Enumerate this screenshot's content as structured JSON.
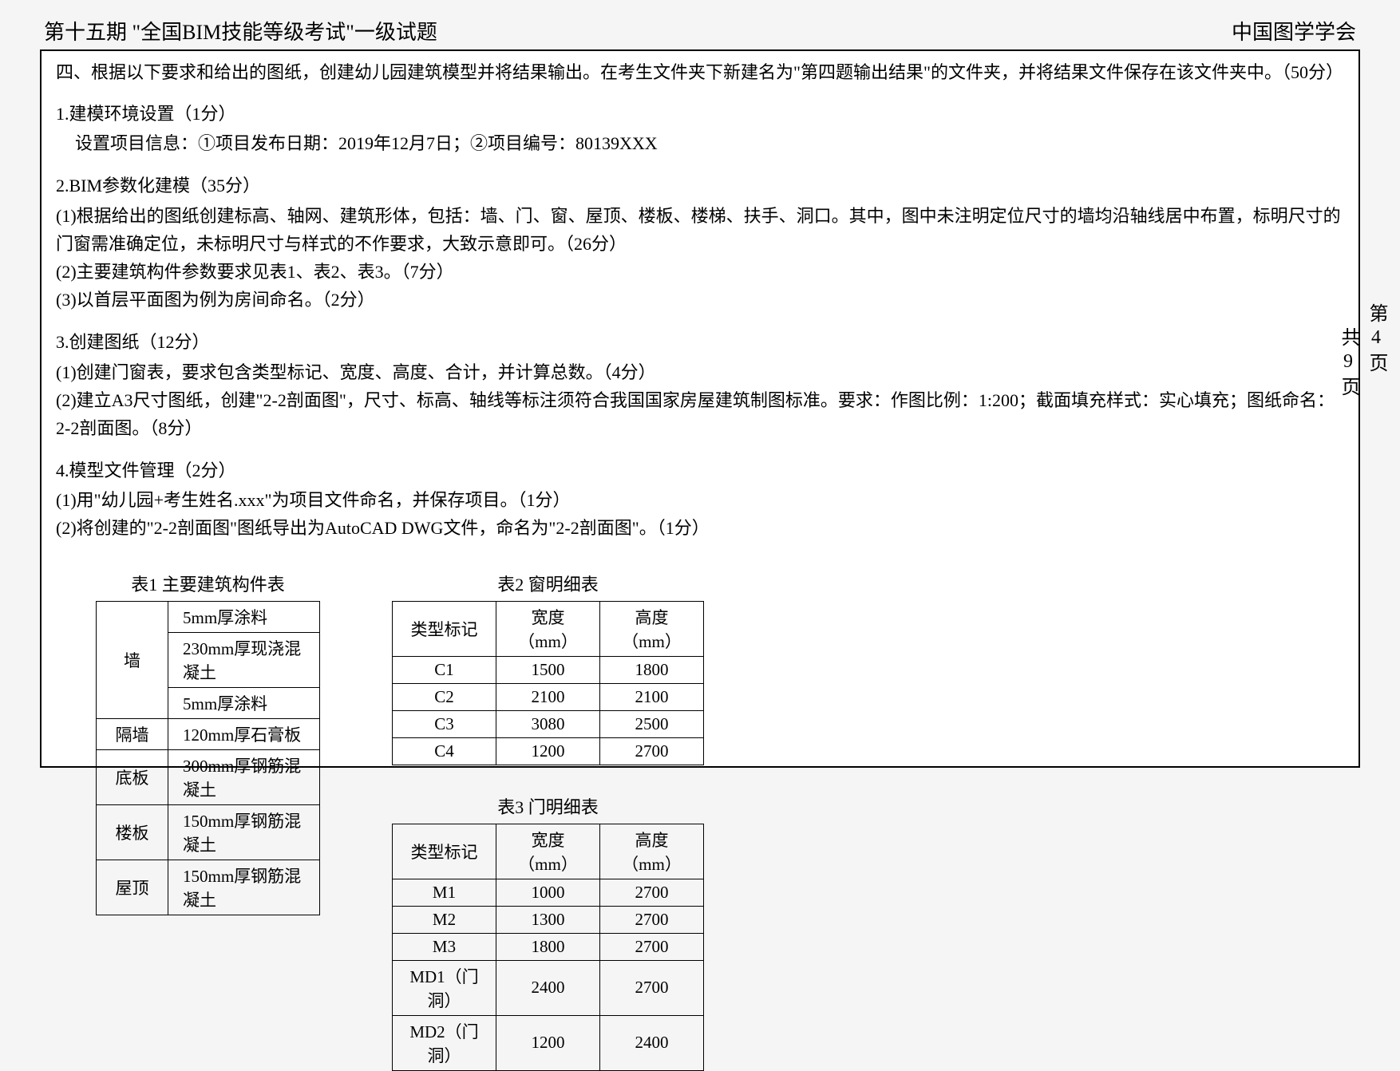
{
  "header": {
    "left": "第十五期 \"全国BIM技能等级考试\"一级试题",
    "right": "中国图学学会"
  },
  "intro": "四、根据以下要求和给出的图纸，创建幼儿园建筑模型并将结果输出。在考生文件夹下新建名为\"第四题输出结果\"的文件夹，并将结果文件保存在该文件夹中。（50分）",
  "s1": {
    "title": "1.建模环境设置（1分）",
    "line1": "设置项目信息：①项目发布日期：2019年12月7日；②项目编号：80139XXX"
  },
  "s2": {
    "title": "2.BIM参数化建模（35分）",
    "p1": "(1)根据给出的图纸创建标高、轴网、建筑形体，包括：墙、门、窗、屋顶、楼板、楼梯、扶手、洞口。其中，图中未注明定位尺寸的墙均沿轴线居中布置，标明尺寸的门窗需准确定位，未标明尺寸与样式的不作要求，大致示意即可。（26分）",
    "p2": "(2)主要建筑构件参数要求见表1、表2、表3。（7分）",
    "p3": "(3)以首层平面图为例为房间命名。（2分）"
  },
  "s3": {
    "title": "3.创建图纸（12分）",
    "p1": "(1)创建门窗表，要求包含类型标记、宽度、高度、合计，并计算总数。（4分）",
    "p2": "(2)建立A3尺寸图纸，创建\"2-2剖面图\"，尺寸、标高、轴线等标注须符合我国国家房屋建筑制图标准。要求：作图比例：1:200；截面填充样式：实心填充；图纸命名：2-2剖面图。（8分）"
  },
  "s4": {
    "title": "4.模型文件管理（2分）",
    "p1": "(1)用\"幼儿园+考生姓名.xxx\"为项目文件命名，并保存项目。（1分）",
    "p2": "(2)将创建的\"2-2剖面图\"图纸导出为AutoCAD DWG文件，命名为\"2-2剖面图\"。（1分）"
  },
  "table1": {
    "caption": "表1  主要建筑构件表",
    "rows": [
      {
        "c1": "墙",
        "c2a": "5mm厚涂料",
        "c2b": "230mm厚现浇混凝土",
        "c2c": "5mm厚涂料",
        "rowspan": 3
      },
      {
        "c1": "隔墙",
        "c2": "120mm厚石膏板"
      },
      {
        "c1": "底板",
        "c2": "300mm厚钢筋混凝土"
      },
      {
        "c1": "楼板",
        "c2": "150mm厚钢筋混凝土"
      },
      {
        "c1": "屋顶",
        "c2": "150mm厚钢筋混凝土"
      }
    ]
  },
  "table2": {
    "caption": "表2  窗明细表",
    "h1": "类型标记",
    "h2": "宽度（mm）",
    "h3": "高度（mm）",
    "rows": [
      {
        "c1": "C1",
        "c2": "1500",
        "c3": "1800"
      },
      {
        "c1": "C2",
        "c2": "2100",
        "c3": "2100"
      },
      {
        "c1": "C3",
        "c2": "3080",
        "c3": "2500"
      },
      {
        "c1": "C4",
        "c2": "1200",
        "c3": "2700"
      }
    ]
  },
  "table3": {
    "caption": "表3  门明细表",
    "h1": "类型标记",
    "h2": "宽度（mm）",
    "h3": "高度（mm）",
    "rows": [
      {
        "c1": "M1",
        "c2": "1000",
        "c3": "2700"
      },
      {
        "c1": "M2",
        "c2": "1300",
        "c3": "2700"
      },
      {
        "c1": "M3",
        "c2": "1800",
        "c3": "2700"
      },
      {
        "c1": "MD1（门洞）",
        "c2": "2400",
        "c3": "2700"
      },
      {
        "c1": "MD2（门洞）",
        "c2": "1200",
        "c3": "2400"
      }
    ]
  },
  "pager": {
    "line1": "第4页",
    "line2": "共9页"
  }
}
